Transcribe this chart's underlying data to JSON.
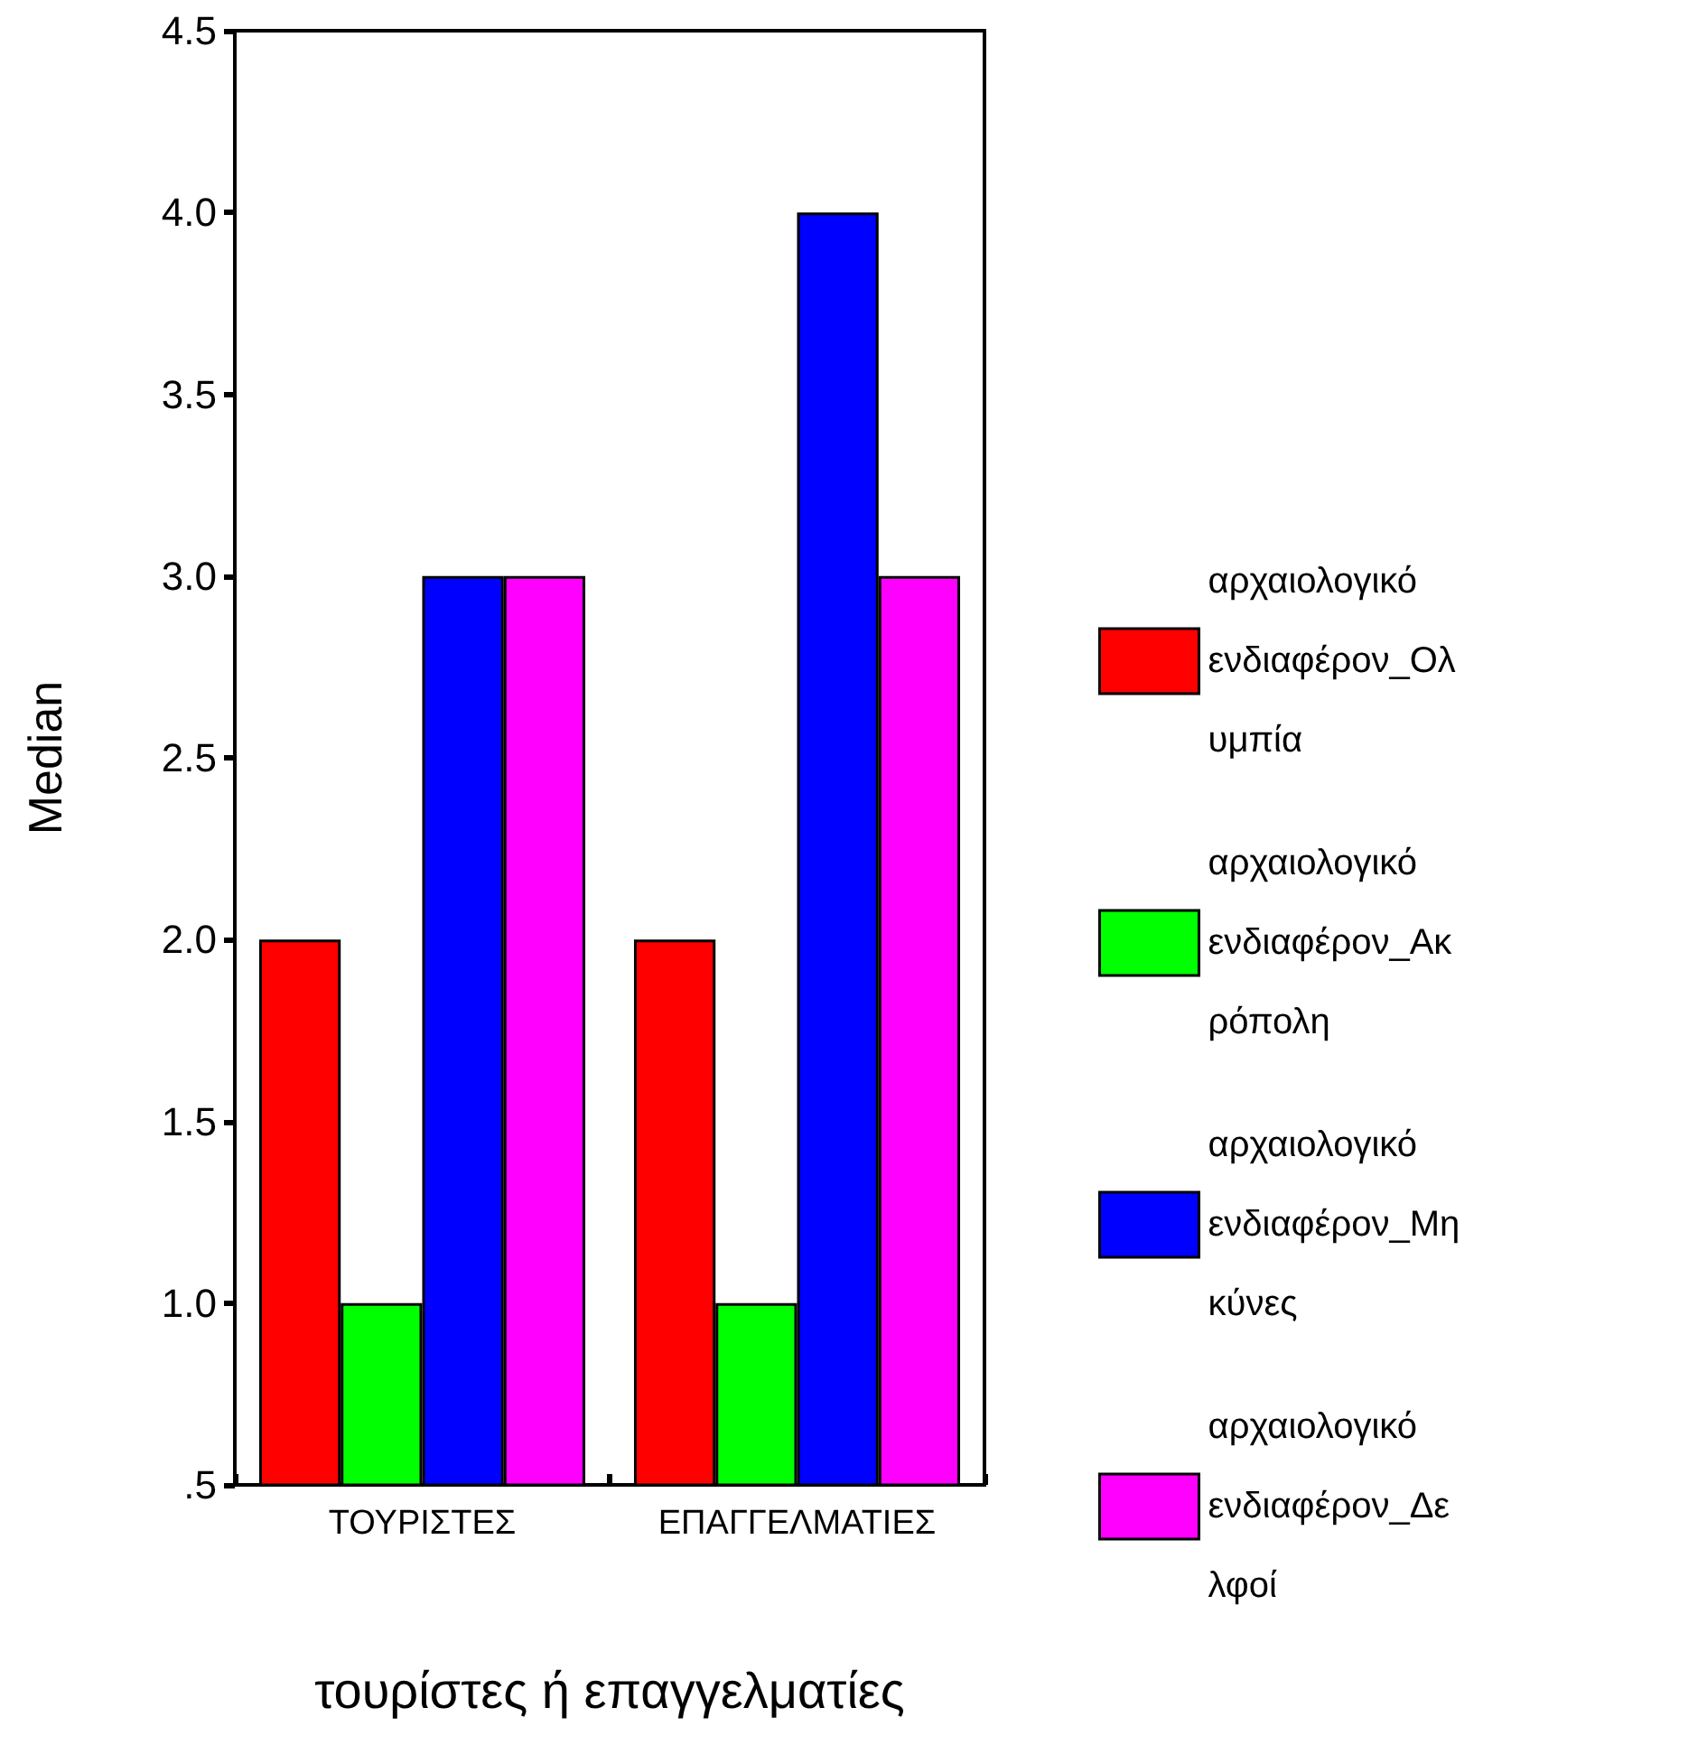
{
  "chart_data": {
    "type": "bar",
    "xlabel": "τουρίστες ή επαγγελματίες",
    "ylabel": "Median",
    "categories": [
      "ΤΟΥΡΙΣΤΕΣ",
      "ΕΠΑΓΓΕΛΜΑΤΙΕΣ"
    ],
    "series": [
      {
        "name": "αρχαιολογικό ενδιαφέρον_Ολυμπία",
        "color": "#ff0000",
        "values": [
          2,
          2
        ]
      },
      {
        "name": "αρχαιολογικό ενδιαφέρον_Ακρόπολη",
        "color": "#00ff00",
        "values": [
          1,
          1
        ]
      },
      {
        "name": "αρχαιολογικό ενδιαφέρον_Μηκύνες",
        "color": "#0000ff",
        "values": [
          3,
          4
        ]
      },
      {
        "name": "αρχαιολογικό ενδιαφέρον_Δελφοί",
        "color": "#ff00ff",
        "values": [
          3,
          3
        ]
      }
    ],
    "ylim": [
      0.5,
      4.5
    ],
    "yticks": [
      {
        "value": 0.5,
        "label": ".5"
      },
      {
        "value": 1,
        "label": "1.0"
      },
      {
        "value": 1.5,
        "label": "1.5"
      },
      {
        "value": 2,
        "label": "2.0"
      },
      {
        "value": 2.5,
        "label": "2.5"
      },
      {
        "value": 3,
        "label": "3.0"
      },
      {
        "value": 3.5,
        "label": "3.5"
      },
      {
        "value": 4,
        "label": "4.0"
      },
      {
        "value": 4.5,
        "label": "4.5"
      }
    ],
    "legend": "right"
  }
}
